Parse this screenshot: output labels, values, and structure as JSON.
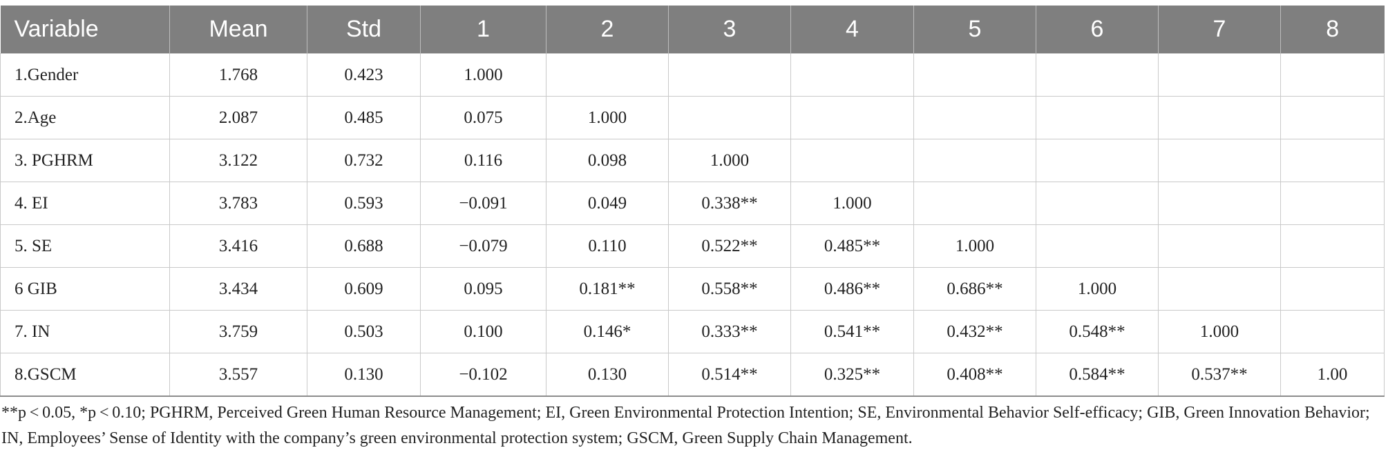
{
  "table": {
    "headers": [
      "Variable",
      "Mean",
      "Std",
      "1",
      "2",
      "3",
      "4",
      "5",
      "6",
      "7",
      "8"
    ],
    "rows": [
      [
        "1.Gender",
        "1.768",
        "0.423",
        "1.000",
        "",
        "",
        "",
        "",
        "",
        "",
        ""
      ],
      [
        "2.Age",
        "2.087",
        "0.485",
        "0.075",
        "1.000",
        "",
        "",
        "",
        "",
        "",
        ""
      ],
      [
        "3. PGHRM",
        "3.122",
        "0.732",
        "0.116",
        "0.098",
        "1.000",
        "",
        "",
        "",
        "",
        ""
      ],
      [
        "4. EI",
        "3.783",
        "0.593",
        "−0.091",
        "0.049",
        "0.338**",
        "1.000",
        "",
        "",
        "",
        ""
      ],
      [
        "5. SE",
        "3.416",
        "0.688",
        "−0.079",
        "0.110",
        "0.522**",
        "0.485**",
        "1.000",
        "",
        "",
        ""
      ],
      [
        "6 GIB",
        "3.434",
        "0.609",
        "0.095",
        "0.181**",
        "0.558**",
        "0.486**",
        "0.686**",
        "1.000",
        "",
        ""
      ],
      [
        "7. IN",
        "3.759",
        "0.503",
        "0.100",
        "0.146*",
        "0.333**",
        "0.541**",
        "0.432**",
        "0.548**",
        "1.000",
        ""
      ],
      [
        "8.GSCM",
        "3.557",
        "0.130",
        "−0.102",
        "0.130",
        "0.514**",
        "0.325**",
        "0.408**",
        "0.584**",
        "0.537**",
        "1.00"
      ]
    ]
  },
  "footnote": "**p < 0.05, *p < 0.10; PGHRM, Perceived Green Human Resource Management; EI, Green Environmental Protection Intention; SE, Environmental Behavior Self-efficacy; GIB, Green Innovation Behavior; IN, Employees’ Sense of Identity with the company’s green environmental protection system; GSCM, Green Supply Chain Management."
}
